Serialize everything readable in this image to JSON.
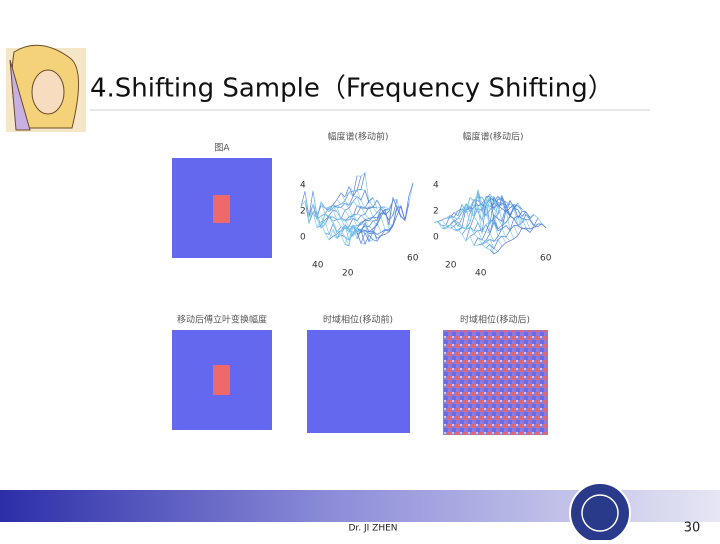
{
  "slide": {
    "title": "4.Shifting Sample（Frequency Shifting）",
    "panels": [
      {
        "title": "图A"
      },
      {
        "title": "幅度谱(移动前)",
        "zticks": [
          "4",
          "2",
          "0"
        ],
        "xticks": [
          "40",
          "20"
        ],
        "yticks": [
          "60"
        ]
      },
      {
        "title": "幅度谱(移动后)",
        "zticks": [
          "4",
          "2",
          "0"
        ],
        "xticks": [
          "20",
          "40"
        ],
        "yticks": [
          "60"
        ]
      },
      {
        "title": "移动后傅立叶变换幅度"
      },
      {
        "title": "时域相位(移动前)"
      },
      {
        "title": "时域相位(移动后)"
      }
    ],
    "footer": {
      "author": "Dr. JI ZHEN",
      "page": "30"
    }
  }
}
